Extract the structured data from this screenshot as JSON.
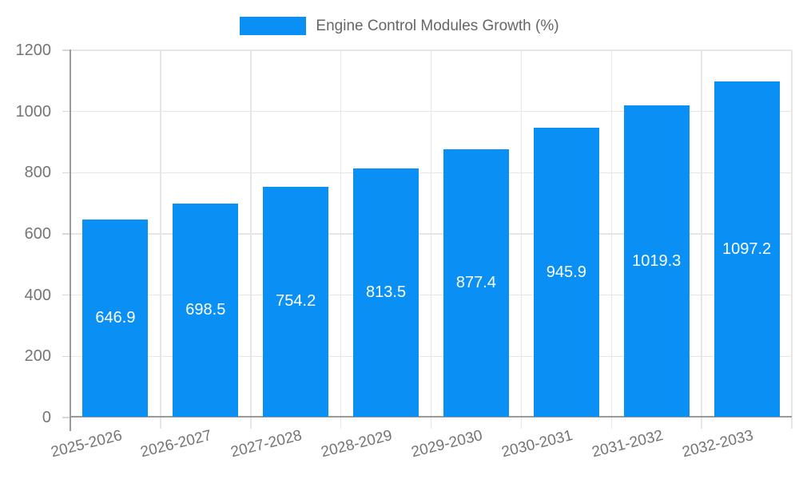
{
  "legend": {
    "label": "Engine Control Modules Growth (%)"
  },
  "chart_data": {
    "type": "bar",
    "title": "Engine Control Modules Growth (%)",
    "categories": [
      "2025-2026",
      "2026-2027",
      "2027-2028",
      "2028-2029",
      "2029-2030",
      "2030-2031",
      "2031-2032",
      "2032-2033"
    ],
    "values": [
      646.9,
      698.5,
      754.2,
      813.5,
      877.4,
      945.9,
      1019.3,
      1097.2
    ],
    "value_labels": [
      "646.9",
      "698.5",
      "754.2",
      "813.5",
      "877.4",
      "945.9",
      "1019.3",
      "1097.2"
    ],
    "xlabel": "",
    "ylabel": "",
    "ylim": [
      0,
      1200
    ],
    "yticks": [
      0,
      200,
      400,
      600,
      800,
      1000,
      1200
    ],
    "grid": true,
    "legend_position": "top",
    "bar_color": "#0a90f5",
    "value_label_color": "#ffffff",
    "gridline_color": "#e6e6e6",
    "axis_line_color": "#9a9a9a",
    "tick_label_color": "#757575",
    "legend_text_color": "#666666",
    "background_color": "#ffffff"
  }
}
